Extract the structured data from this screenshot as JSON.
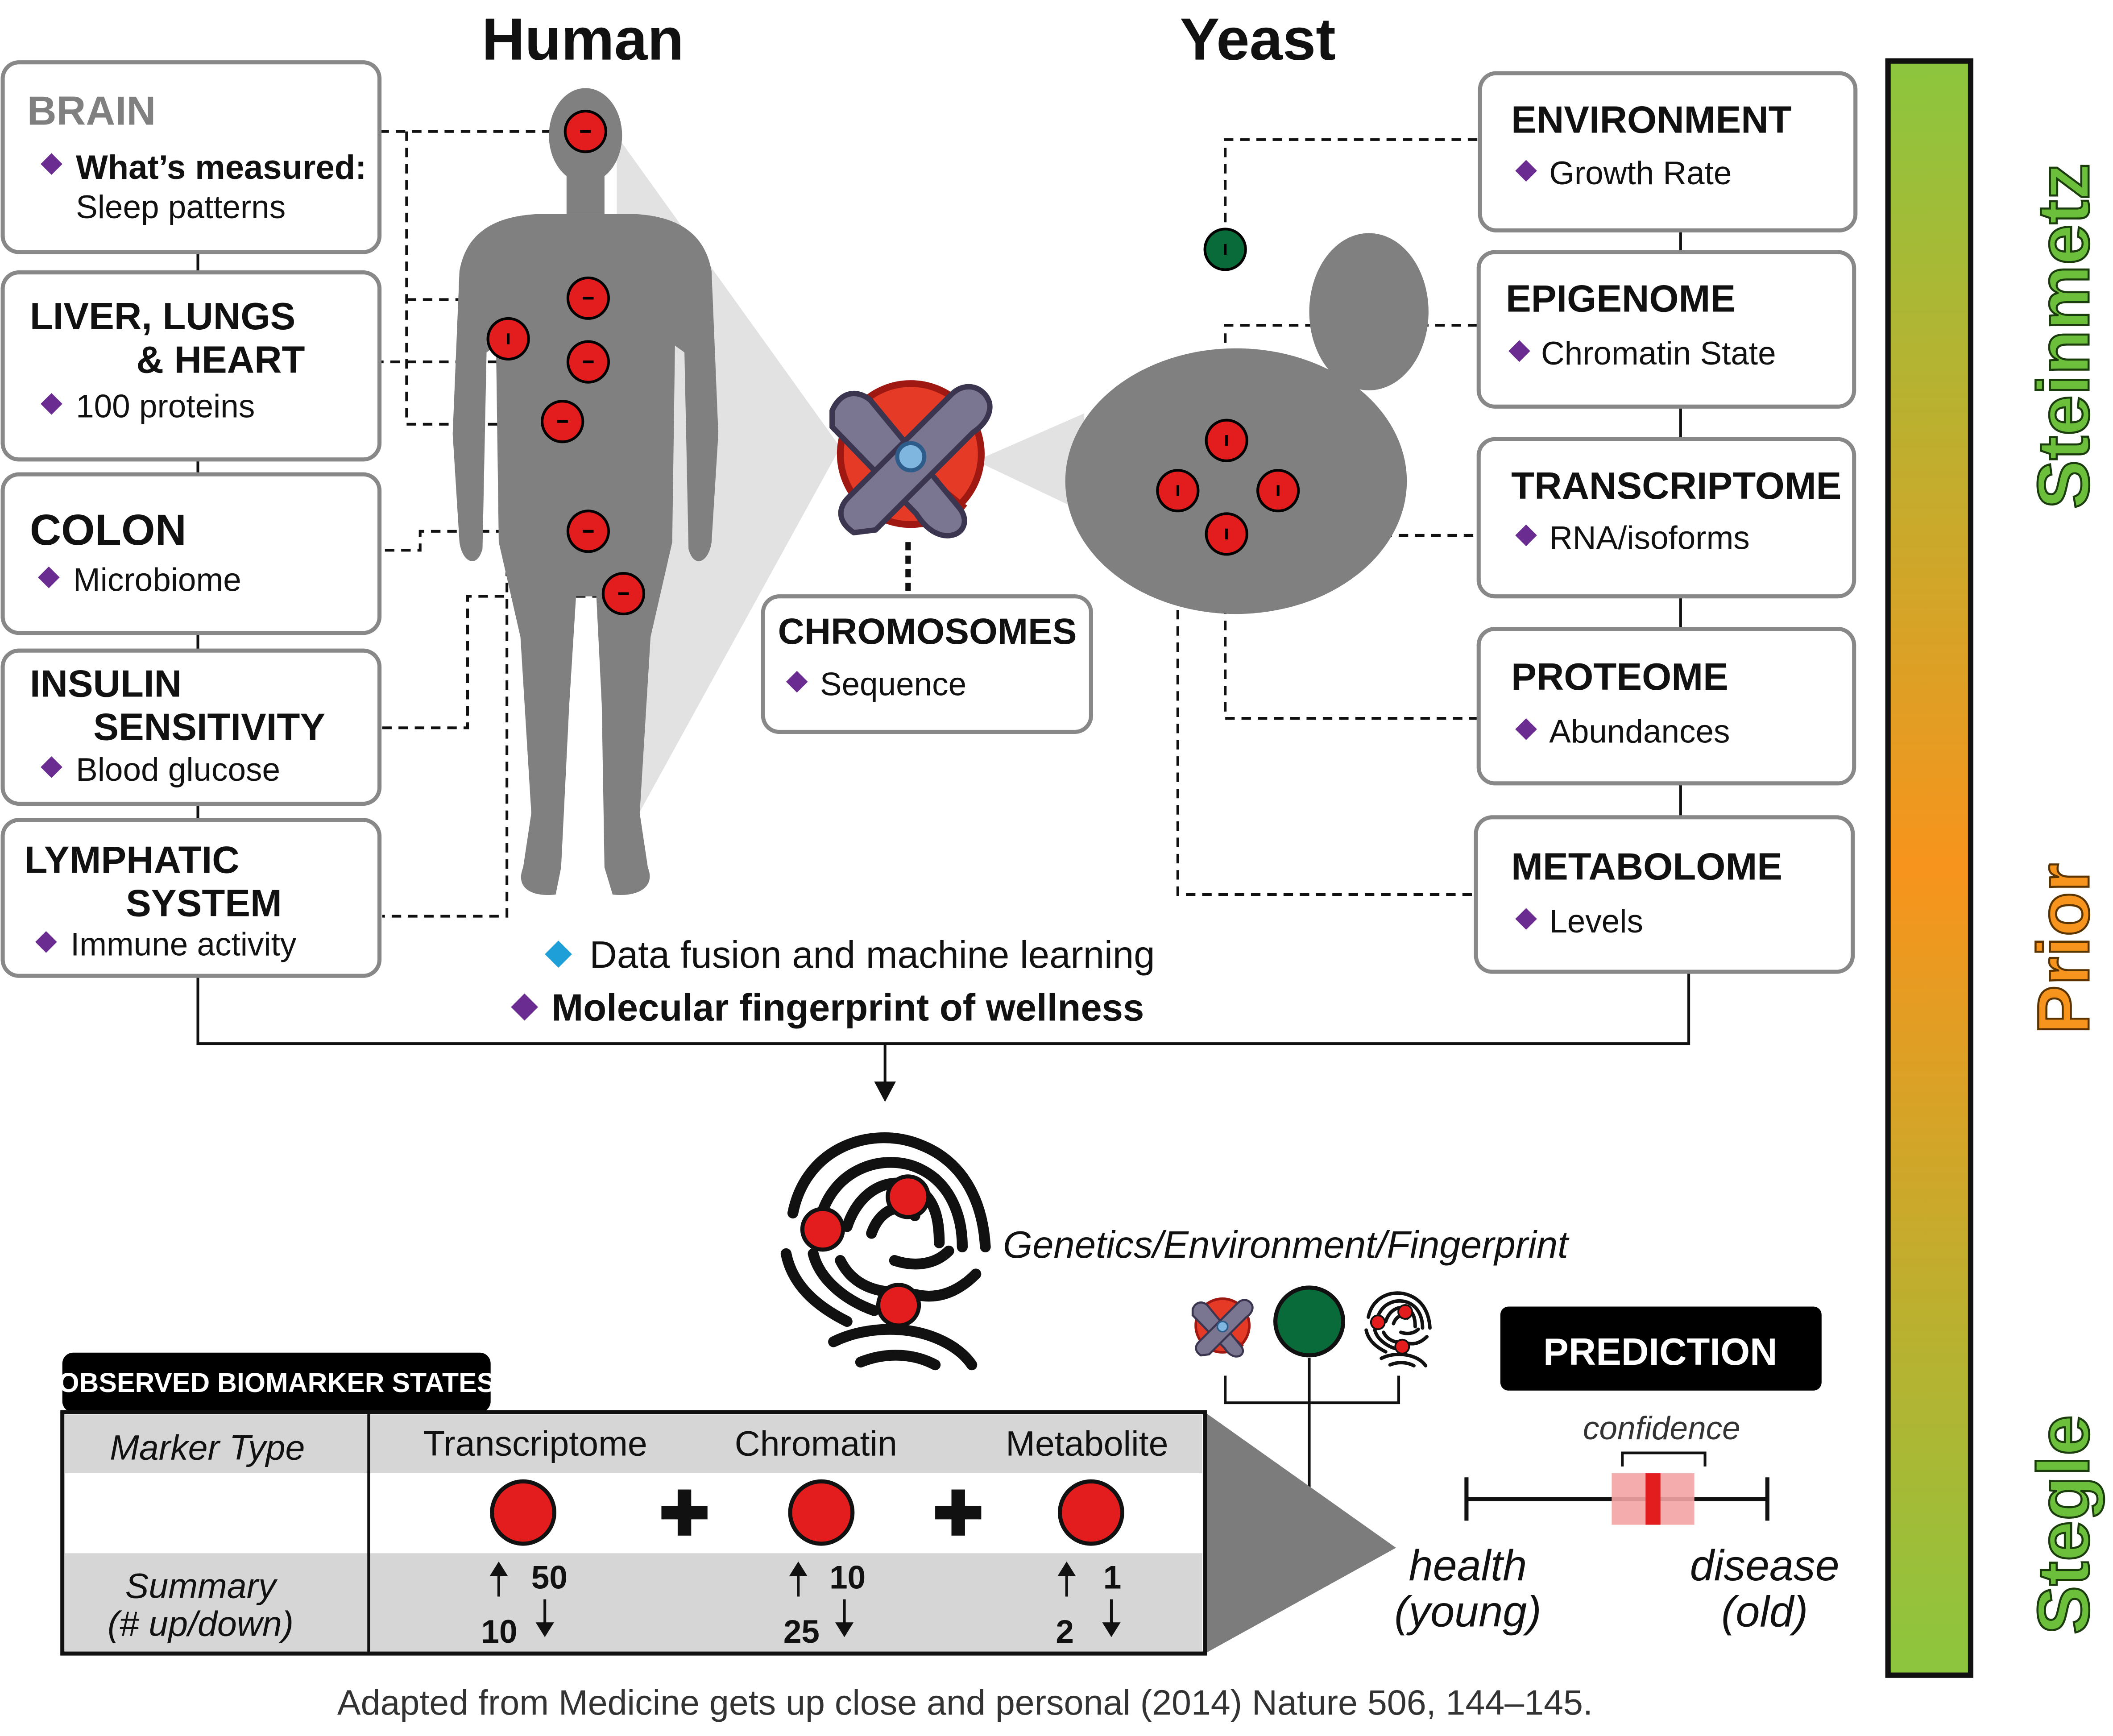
{
  "headers": {
    "human": "Human",
    "yeast": "Yeast"
  },
  "human_boxes": [
    {
      "title": [
        "BRAIN"
      ],
      "items": [
        {
          "label": "What’s measured:",
          "bold": true
        },
        {
          "label": "Sleep patterns",
          "bold": false
        }
      ]
    },
    {
      "title": [
        "LIVER, LUNGS",
        "& HEART"
      ],
      "items": [
        {
          "label": "100 proteins",
          "bold": false
        }
      ]
    },
    {
      "title": [
        "COLON"
      ],
      "items": [
        {
          "label": "Microbiome",
          "bold": false
        }
      ]
    },
    {
      "title": [
        "INSULIN",
        "SENSITIVITY"
      ],
      "items": [
        {
          "label": "Blood glucose",
          "bold": false
        }
      ]
    },
    {
      "title": [
        "LYMPHATIC",
        "SYSTEM"
      ],
      "items": [
        {
          "label": "Immune activity",
          "bold": false
        }
      ]
    }
  ],
  "yeast_boxes": [
    {
      "title": "ENVIRONMENT",
      "item": "Growth Rate"
    },
    {
      "title": "EPIGENOME",
      "item": "Chromatin State"
    },
    {
      "title": "TRANSCRIPTOME",
      "item": "RNA/isoforms"
    },
    {
      "title": "PROTEOME",
      "item": "Abundances"
    },
    {
      "title": "METABOLOME",
      "item": "Levels"
    }
  ],
  "chromosomes": {
    "title": "CHROMOSOMES",
    "item": "Sequence"
  },
  "fusion": {
    "line1": "Data fusion and machine learning",
    "line2": "Molecular fingerprint of wellness"
  },
  "gef_label": "Genetics/Environment/Fingerprint",
  "table": {
    "tab": "OBSERVED BIOMARKER STATES",
    "row1_label": "Marker Type",
    "row3_label": [
      "Summary",
      "(# up/down)"
    ],
    "columns": [
      {
        "name": "Transcriptome",
        "up": "50",
        "down": "10"
      },
      {
        "name": "Chromatin",
        "up": "10",
        "down": "25"
      },
      {
        "name": "Metabolite",
        "up": "1",
        "down": "2"
      }
    ]
  },
  "prediction": {
    "title": "PREDICTION",
    "confidence": "confidence",
    "left": [
      "health",
      "(young)"
    ],
    "right": [
      "disease",
      "(old)"
    ],
    "value": 0.62
  },
  "side_bar": {
    "labels": [
      "Steinmetz",
      "Prior",
      "Stegle"
    ]
  },
  "caption": "Adapted from Medicine gets up close and personal (2014) Nature 506, 144–145.",
  "colors": {
    "gray": "#808080",
    "marker_red": "#e31d1d",
    "diamond_purple": "#6a2c91",
    "diamond_blue": "#1e9fd8",
    "env_green": "#0a6b3a",
    "bar_green": "#8cc63e",
    "bar_orange": "#f7941d",
    "label_green": "#6cbf3b",
    "label_orange": "#f7941d"
  }
}
